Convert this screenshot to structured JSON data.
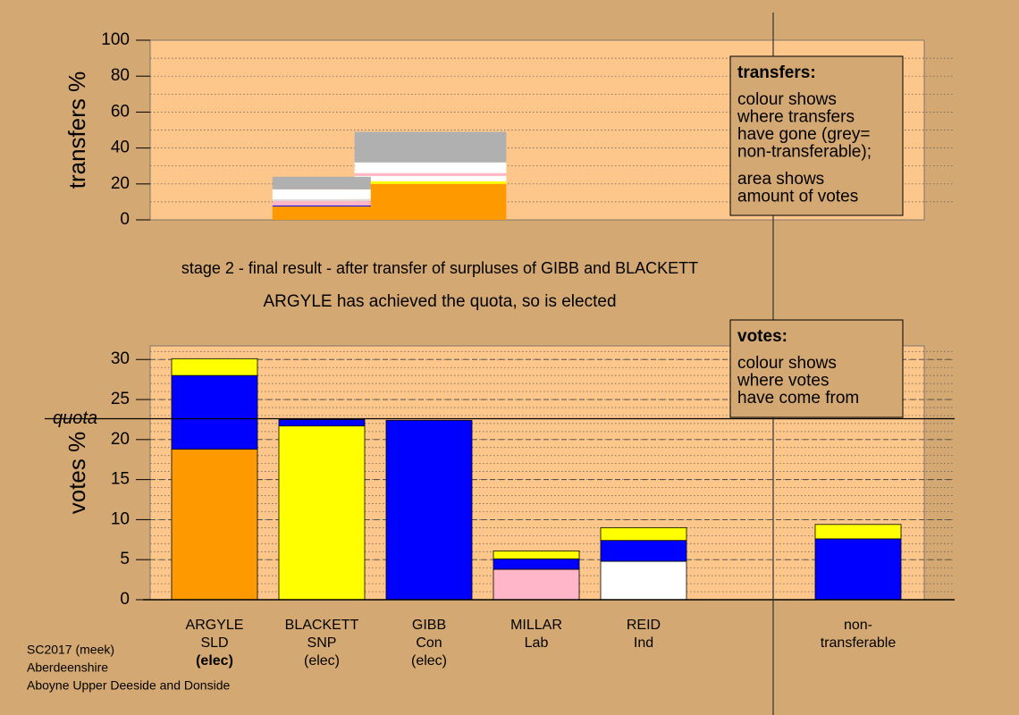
{
  "chart_data": [
    {
      "type": "transfer-blocks",
      "ylabel": "transfers %",
      "ylim": [
        0,
        100
      ],
      "yticks": [
        0,
        20,
        40,
        60,
        80,
        100
      ],
      "xlim": [
        0,
        100
      ],
      "minor_ystep": 10,
      "plot_color": "#fdc68b",
      "blocks": [
        {
          "x": [
            26.4,
            46
          ],
          "segments": [
            {
              "color": "#ff9900",
              "value": 20
            },
            {
              "color": "#ffff00",
              "value": 1.5
            },
            {
              "color": "#ffffff",
              "value": 3
            },
            {
              "color": "#ffb6c8",
              "value": 1.5
            },
            {
              "color": "#ffffff",
              "value": 6
            },
            {
              "color": "#b0b0b0",
              "value": 17
            }
          ]
        },
        {
          "x": [
            15.8,
            28.5
          ],
          "segments": [
            {
              "color": "#ff9900",
              "value": 7.5
            },
            {
              "color": "#0000ff",
              "value": 0.5
            },
            {
              "color": "#ffb6c8",
              "value": 2.5
            },
            {
              "color": "#dddddd",
              "value": 1
            },
            {
              "color": "#ffffff",
              "value": 5.5
            },
            {
              "color": "#b0b0b0",
              "value": 7
            }
          ]
        }
      ]
    },
    {
      "type": "stacked-bar",
      "ylabel": "votes %",
      "ylim": [
        0,
        31.7
      ],
      "yticks": [
        0,
        5,
        10,
        15,
        20,
        25,
        30
      ],
      "minor_ystep": 1,
      "plot_color": "#fdc68b",
      "quota": {
        "value": 22.6,
        "label": "quota"
      },
      "categories": [
        [
          "ARGYLE",
          "SLD",
          "(elec)"
        ],
        [
          "BLACKETT",
          "SNP",
          "(elec)"
        ],
        [
          "GIBB",
          "Con",
          "(elec)"
        ],
        [
          "MILLAR",
          "Lab"
        ],
        [
          "REID",
          "Ind"
        ],
        null,
        [
          "non-",
          "transferable"
        ]
      ],
      "series": [
        {
          "colors": [
            "#ff9900",
            "#ffff00",
            "#0000ff",
            "#ffb6c8",
            "#ffffff",
            null,
            null
          ],
          "values": [
            18.8,
            21.7,
            22.4,
            3.8,
            4.8,
            null,
            null
          ]
        },
        {
          "color": "#0000ff",
          "values": [
            9.2,
            0.8,
            null,
            1.3,
            2.6,
            null,
            7.6
          ]
        },
        {
          "color": "#ffff00",
          "values": [
            2.1,
            null,
            null,
            1.0,
            1.6,
            null,
            1.8
          ]
        }
      ]
    }
  ],
  "captions": [
    "stage 2 - final result - after transfer of surpluses of GIBB and BLACKETT",
    "ARGYLE has achieved the quota, so is elected"
  ],
  "boxes": [
    {
      "heading": "transfers:",
      "paragraphs": [
        [
          "colour shows",
          "where transfers",
          "have gone (grey=",
          "non-transferable);"
        ],
        [
          "area shows",
          "amount of votes"
        ]
      ]
    },
    {
      "heading": "votes:",
      "paragraphs": [
        [
          "colour shows",
          "where votes",
          "have come from"
        ]
      ]
    }
  ],
  "footer": [
    "SC2017 (meek)",
    "Aberdeenshire",
    "Aboyne Upper Deeside and Donside"
  ]
}
